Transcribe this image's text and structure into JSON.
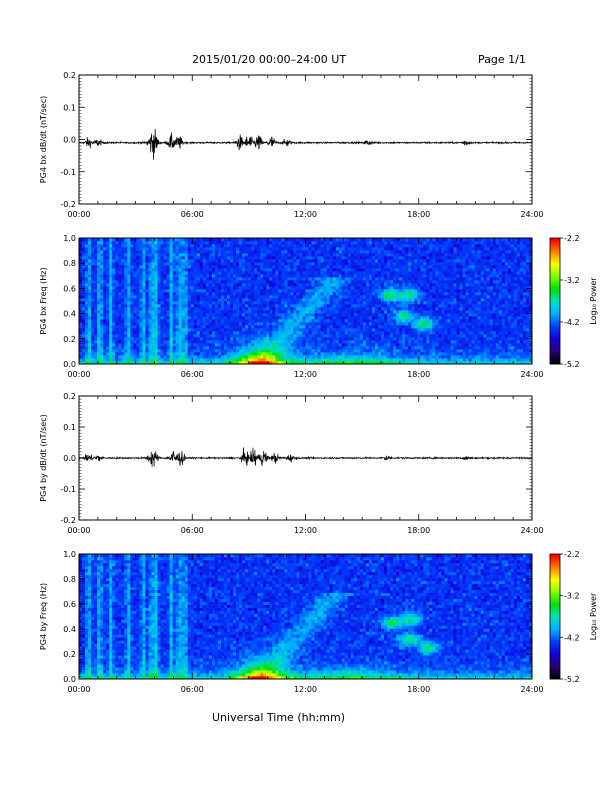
{
  "header": {
    "title": "2015/01/20  00:00–24:00 UT",
    "page": "Page 1/1"
  },
  "footer": {
    "xlabel": "Universal Time (hh:mm)"
  },
  "colors": {
    "background": "#ffffff",
    "axes": "#000000",
    "trace": "#000000",
    "colormap": [
      "#000000",
      "#2a007a",
      "#1500d6",
      "#0040ff",
      "#00b0ff",
      "#00e0c0",
      "#00e000",
      "#80ff00",
      "#ffff00",
      "#ff8000",
      "#ff0000"
    ]
  },
  "chart_data": [
    {
      "type": "line",
      "ylabel": "PG4 bx dB/dt (nT/sec)",
      "xlim": [
        0,
        24
      ],
      "ylim": [
        -0.2,
        0.2
      ],
      "xticks": [
        "00:00",
        "06:00",
        "12:00",
        "18:00",
        "24:00"
      ],
      "yticks": [
        "-0.2",
        "-0.1",
        "0.0",
        "0.1",
        "0.2"
      ],
      "baseline": -0.01,
      "activity": [
        {
          "t": 0.5,
          "amp": 0.025
        },
        {
          "t": 1.0,
          "amp": 0.02
        },
        {
          "t": 3.8,
          "amp": 0.04
        },
        {
          "t": 4.0,
          "amp": 0.06
        },
        {
          "t": 4.9,
          "amp": 0.04
        },
        {
          "t": 5.3,
          "amp": 0.035
        },
        {
          "t": 8.5,
          "amp": 0.04
        },
        {
          "t": 9.0,
          "amp": 0.045
        },
        {
          "t": 9.5,
          "amp": 0.045
        },
        {
          "t": 10.2,
          "amp": 0.035
        },
        {
          "t": 11.0,
          "amp": 0.02
        },
        {
          "t": 15.3,
          "amp": 0.015
        },
        {
          "t": 20.5,
          "amp": 0.015
        }
      ]
    },
    {
      "type": "heatmap",
      "ylabel": "PG4 bx Freq (Hz)",
      "xlim": [
        0,
        24
      ],
      "ylim": [
        0,
        1.0
      ],
      "xticks": [
        "00:00",
        "06:00",
        "12:00",
        "18:00",
        "24:00"
      ],
      "yticks": [
        "0.0",
        "0.2",
        "0.4",
        "0.6",
        "0.8",
        "1.0"
      ],
      "colorbar": {
        "label": "Log₁₀ Power",
        "range": [
          -5.2,
          -2.2
        ],
        "ticks": [
          "-2.2",
          "-3.2",
          "-4.2",
          "-5.2"
        ]
      }
    },
    {
      "type": "line",
      "ylabel": "PG4 by dB/dt (nT/sec)",
      "xlim": [
        0,
        24
      ],
      "ylim": [
        -0.2,
        0.2
      ],
      "xticks": [
        "00:00",
        "06:00",
        "12:00",
        "18:00",
        "24:00"
      ],
      "yticks": [
        "-0.2",
        "-0.1",
        "0.0",
        "0.1",
        "0.2"
      ],
      "baseline": 0.0,
      "activity": [
        {
          "t": 0.5,
          "amp": 0.025
        },
        {
          "t": 1.0,
          "amp": 0.02
        },
        {
          "t": 3.8,
          "amp": 0.03
        },
        {
          "t": 4.0,
          "amp": 0.035
        },
        {
          "t": 5.0,
          "amp": 0.05
        },
        {
          "t": 5.4,
          "amp": 0.04
        },
        {
          "t": 8.8,
          "amp": 0.045
        },
        {
          "t": 9.3,
          "amp": 0.06
        },
        {
          "t": 9.8,
          "amp": 0.05
        },
        {
          "t": 10.4,
          "amp": 0.03
        },
        {
          "t": 11.2,
          "amp": 0.02
        },
        {
          "t": 16.3,
          "amp": 0.015
        },
        {
          "t": 20.5,
          "amp": 0.012
        }
      ]
    },
    {
      "type": "heatmap",
      "ylabel": "PG4 by Freq (Hz)",
      "xlim": [
        0,
        24
      ],
      "ylim": [
        0,
        1.0
      ],
      "xticks": [
        "00:00",
        "06:00",
        "12:00",
        "18:00",
        "24:00"
      ],
      "yticks": [
        "0.0",
        "0.2",
        "0.4",
        "0.6",
        "0.8",
        "1.0"
      ],
      "colorbar": {
        "label": "Log₁₀ Power",
        "range": [
          -5.2,
          -2.2
        ],
        "ticks": [
          "-2.2",
          "-3.2",
          "-4.2",
          "-5.2"
        ]
      }
    }
  ]
}
